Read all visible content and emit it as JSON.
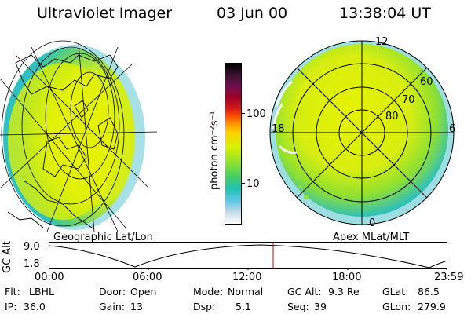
{
  "header": {
    "instrument": "Ultraviolet Imager",
    "date": "03 Jun 00",
    "time": "13:38:04 UT"
  },
  "colorbar": {
    "unit_label": "photon cm⁻²s⁻¹",
    "ticks": [
      "100",
      "10"
    ],
    "colors": [
      "#000000",
      "#3a1030",
      "#6e1050",
      "#a00028",
      "#d41818",
      "#ff5000",
      "#ff9a00",
      "#ffd000",
      "#d8f000",
      "#90e030",
      "#48d060",
      "#20c0b0",
      "#60c8e8",
      "#c8dce8",
      "#ffffff"
    ]
  },
  "left_panel": {
    "caption": "Geographic Lat/Lon"
  },
  "right_panel": {
    "caption": "Apex MLat/MLT",
    "mlt_labels": [
      "12",
      "6",
      "18",
      "0"
    ],
    "mlat_labels": [
      "60",
      "70",
      "80"
    ]
  },
  "timeline": {
    "axis_title": "GC Alt",
    "y_ticks": [
      "9.0",
      "1.8"
    ],
    "x_ticks": [
      "00:00",
      "06:00",
      "12:00",
      "18:00",
      "23:59"
    ],
    "current_marker_color": "#cc0000"
  },
  "info": {
    "row1": [
      {
        "key": "Flt:",
        "value": "LBHL"
      },
      {
        "key": "Door:",
        "value": "Open"
      },
      {
        "key": "Mode:",
        "value": "Normal"
      },
      {
        "key": "GC Alt:",
        "value": "9.3 Re"
      },
      {
        "key": "GLat:",
        "value": "86.5"
      }
    ],
    "row2": [
      {
        "key": "IP:",
        "value": "36.0"
      },
      {
        "key": "Gain:",
        "value": "13"
      },
      {
        "key": "Dsp:",
        "value": "5.1"
      },
      {
        "key": "Seq:",
        "value": "39"
      },
      {
        "key": "GLon:",
        "value": "279.9"
      }
    ]
  }
}
